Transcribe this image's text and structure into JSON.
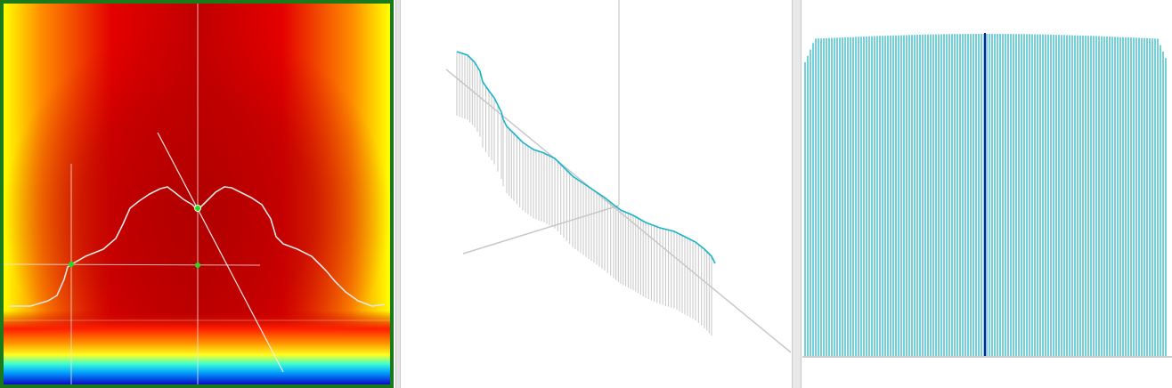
{
  "views": {
    "heatmap": {
      "name": "surface-heatmap-view",
      "frame_color": "#1a7a1a",
      "colormap": [
        "#0a0ac8",
        "#00b4ff",
        "#00ffff",
        "#ffff00",
        "#ff7000",
        "#e00000",
        "#b00000"
      ],
      "crosshair_color": "#e8e8e8",
      "profile_color": "#e6e6e6",
      "marker_color": "#22dd22",
      "markers": 3
    },
    "perspective": {
      "name": "3d-perspective-view",
      "axis_color": "#c8c8c8",
      "profile_color": "#19b4c8",
      "stem_color": "#c4c4c4"
    },
    "profile": {
      "name": "column-profile-view",
      "bar_color": "#29b8c6",
      "highlight_color": "#1a1aa0",
      "baseline_color": "#9a9a9a"
    }
  }
}
